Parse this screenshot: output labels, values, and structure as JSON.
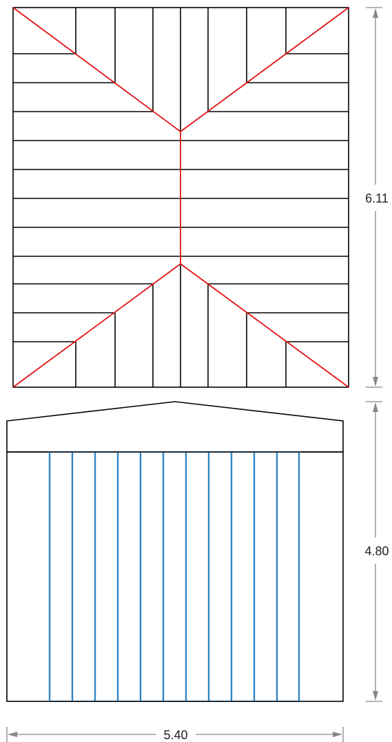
{
  "dimensions": {
    "roof_depth": "6.11",
    "wall_height": "4.80",
    "width": "5.40"
  },
  "colors": {
    "outline": "#000000",
    "hip_lines": "#e01010",
    "battens": "#2f86c6",
    "dimension_lines": "#888888"
  }
}
